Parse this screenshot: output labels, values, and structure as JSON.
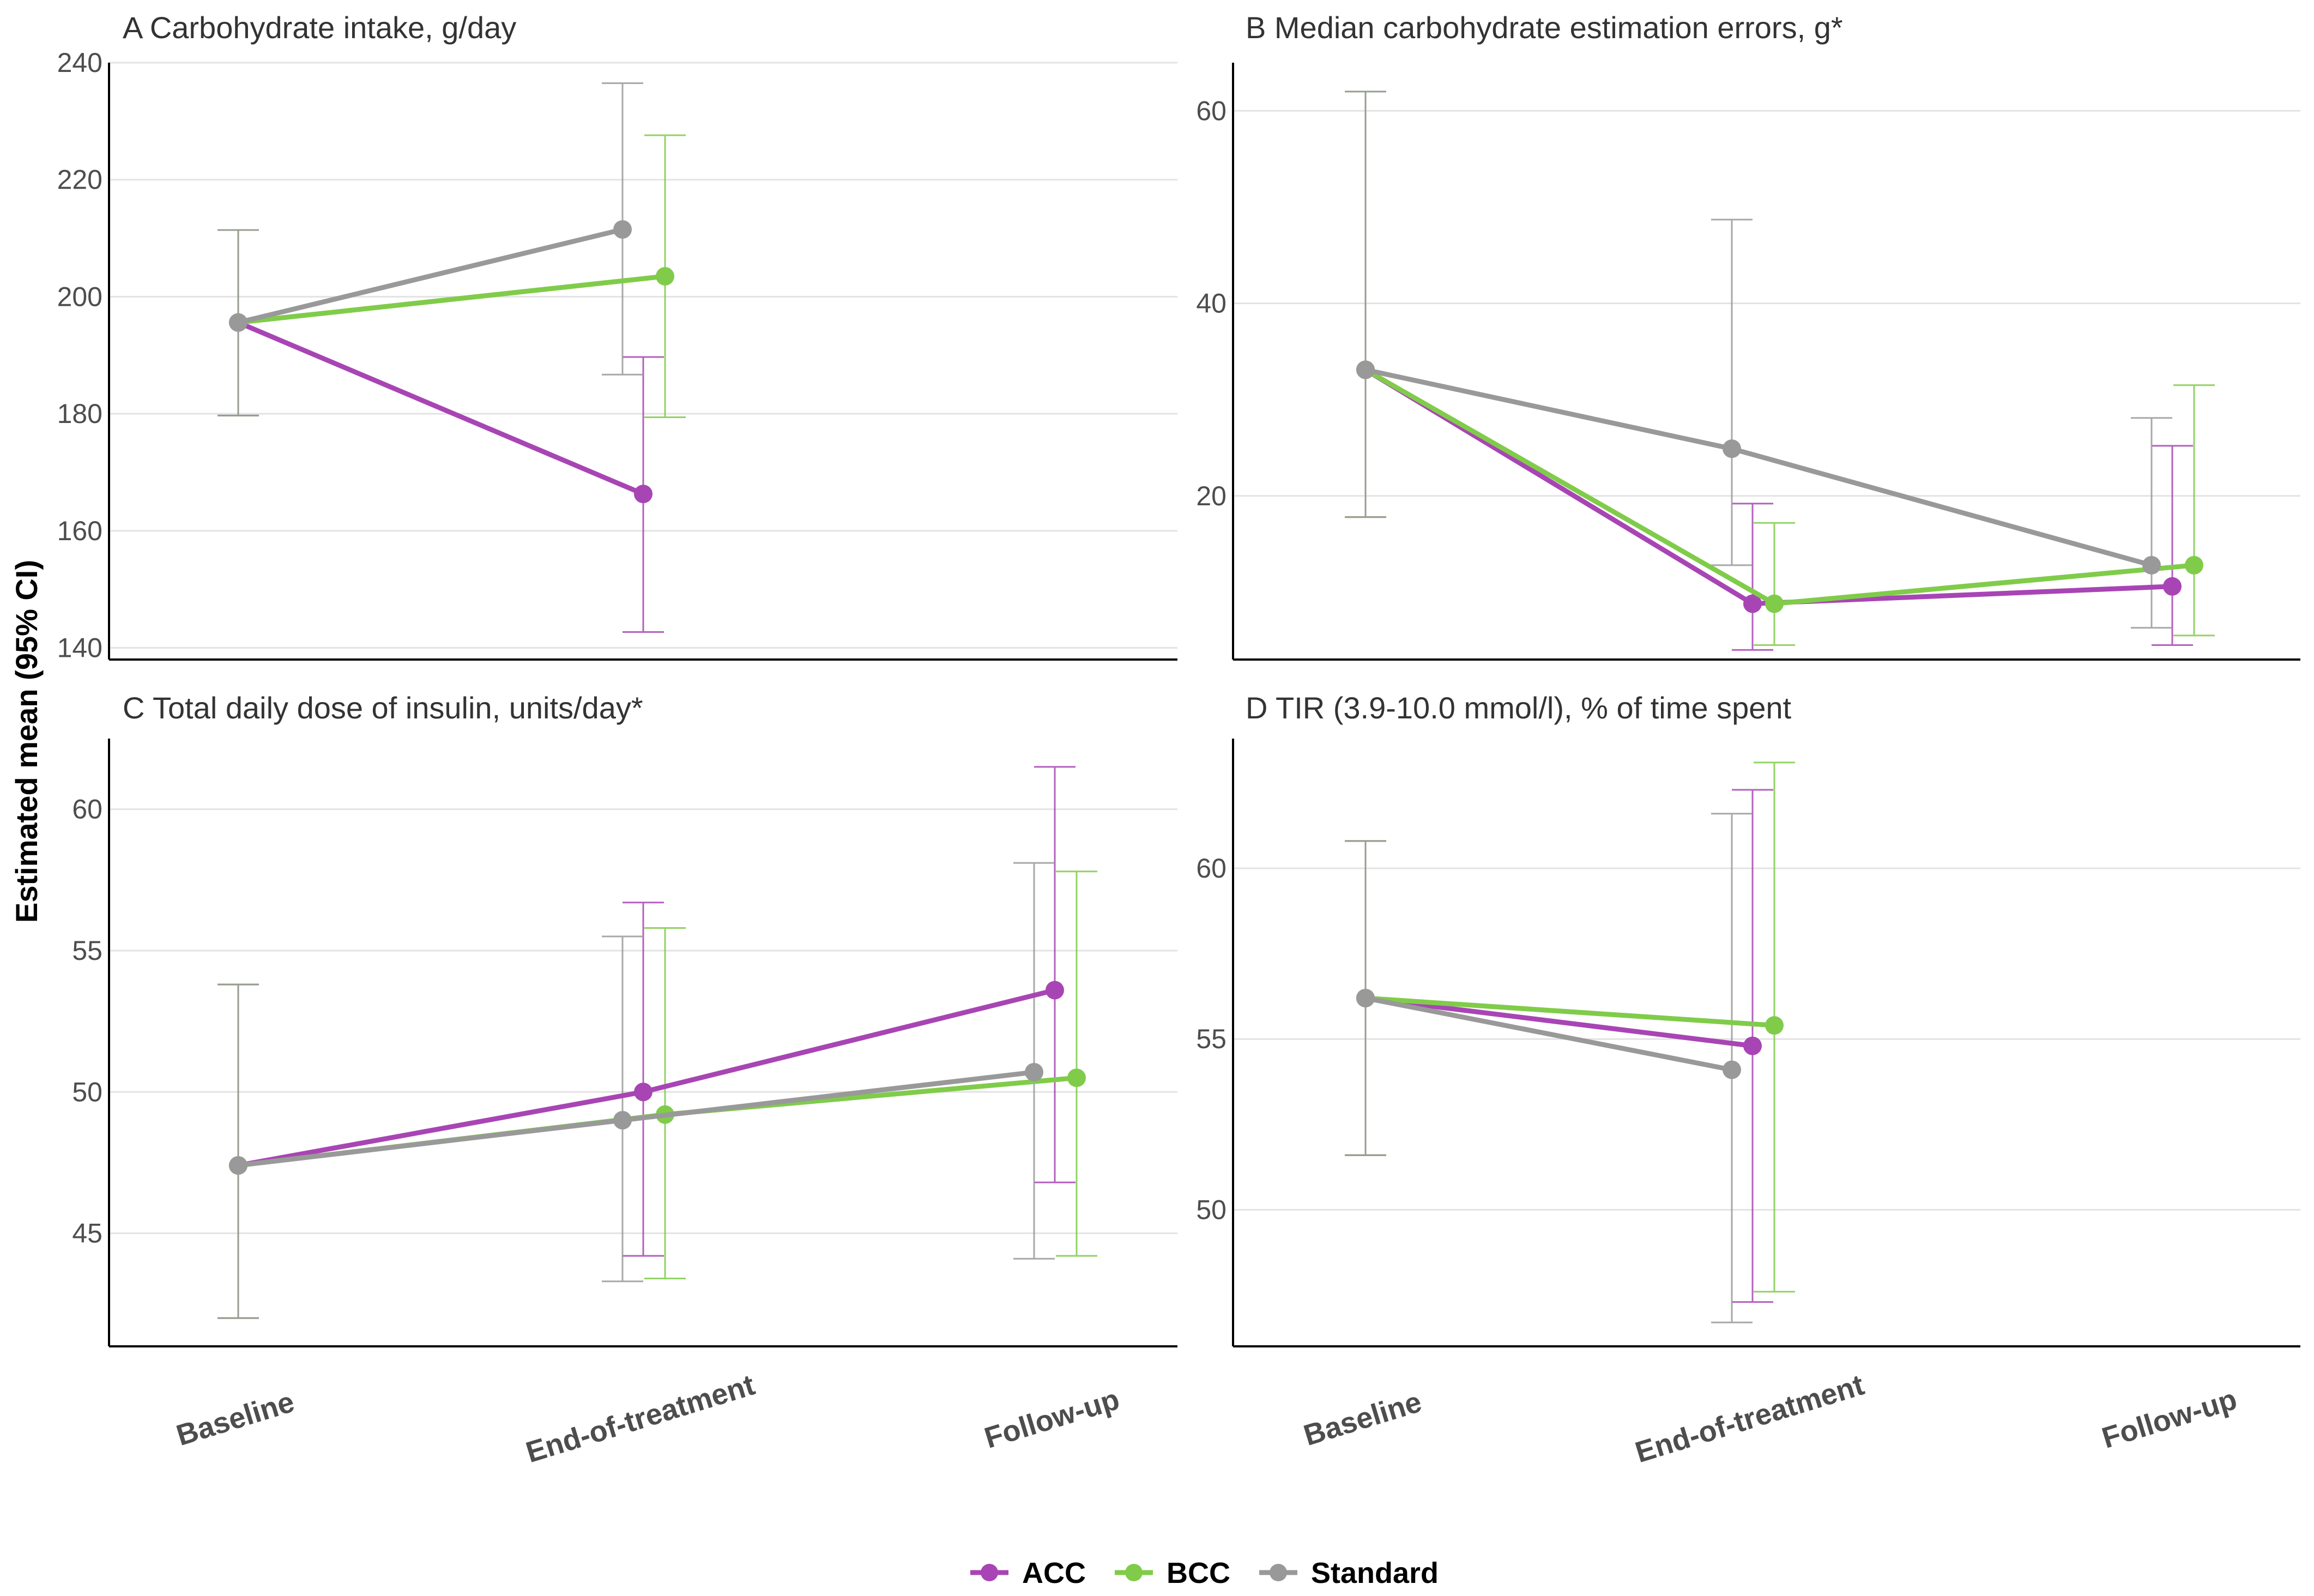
{
  "chart_data": {
    "type": "line",
    "ylabel": "Estimated mean (95% CI)",
    "categories": [
      "Baseline",
      "End-of-treatment",
      "Follow-up"
    ],
    "legend": {
      "placement": "bottom-center",
      "entries": [
        {
          "name": "ACC",
          "color": "#a845b4"
        },
        {
          "name": "BCC",
          "color": "#80cc4a"
        },
        {
          "name": "Standard",
          "color": "#999999"
        }
      ]
    },
    "panels": [
      {
        "title": "A Carbohydrate intake, g/day",
        "ylim": [
          138,
          240
        ],
        "yticks": [
          "140",
          "160",
          "180",
          "200",
          "220",
          "240"
        ],
        "series": [
          {
            "name": "ACC",
            "points": [
              {
                "x": "Baseline",
                "y": 195.6,
                "lo": 179.7,
                "hi": 211.4
              },
              {
                "x": "End-of-treatment",
                "y": 166.3,
                "lo": 142.7,
                "hi": 189.7
              }
            ]
          },
          {
            "name": "BCC",
            "points": [
              {
                "x": "Baseline",
                "y": 195.6,
                "lo": 179.7,
                "hi": 211.4
              },
              {
                "x": "End-of-treatment",
                "y": 203.5,
                "lo": 179.4,
                "hi": 227.6
              }
            ]
          },
          {
            "name": "Standard",
            "points": [
              {
                "x": "Baseline",
                "y": 195.6,
                "lo": 179.7,
                "hi": 211.4
              },
              {
                "x": "End-of-treatment",
                "y": 211.5,
                "lo": 186.7,
                "hi": 236.5
              }
            ]
          }
        ]
      },
      {
        "title": "B Median carbohydrate estimation errors, g*",
        "ylim": [
          3,
          65
        ],
        "yticks": [
          "20",
          "40",
          "60"
        ],
        "series": [
          {
            "name": "ACC",
            "points": [
              {
                "x": "Baseline",
                "y": 33.1,
                "lo": 17.8,
                "hi": 62.0
              },
              {
                "x": "End-of-treatment",
                "y": 8.8,
                "lo": 4.0,
                "hi": 19.2
              },
              {
                "x": "Follow-up",
                "y": 10.6,
                "lo": 4.5,
                "hi": 25.2
              }
            ]
          },
          {
            "name": "BCC",
            "points": [
              {
                "x": "Baseline",
                "y": 33.1,
                "lo": 17.8,
                "hi": 62.0
              },
              {
                "x": "End-of-treatment",
                "y": 8.8,
                "lo": 4.5,
                "hi": 17.2
              },
              {
                "x": "Follow-up",
                "y": 12.8,
                "lo": 5.5,
                "hi": 31.5
              }
            ]
          },
          {
            "name": "Standard",
            "points": [
              {
                "x": "Baseline",
                "y": 33.1,
                "lo": 17.8,
                "hi": 62.0
              },
              {
                "x": "End-of-treatment",
                "y": 24.9,
                "lo": 12.8,
                "hi": 48.7
              },
              {
                "x": "Follow-up",
                "y": 12.8,
                "lo": 6.3,
                "hi": 28.1
              }
            ]
          }
        ]
      },
      {
        "title": "C Total daily dose of insulin, units/day*",
        "ylim": [
          41,
          62.5
        ],
        "yticks": [
          "45",
          "50",
          "55",
          "60"
        ],
        "series": [
          {
            "name": "ACC",
            "points": [
              {
                "x": "Baseline",
                "y": 47.4,
                "lo": 42.0,
                "hi": 53.8
              },
              {
                "x": "End-of-treatment",
                "y": 50.0,
                "lo": 44.2,
                "hi": 56.7
              },
              {
                "x": "Follow-up",
                "y": 53.6,
                "lo": 46.8,
                "hi": 61.5
              }
            ]
          },
          {
            "name": "BCC",
            "points": [
              {
                "x": "Baseline",
                "y": 47.4,
                "lo": 42.0,
                "hi": 53.8
              },
              {
                "x": "End-of-treatment",
                "y": 49.2,
                "lo": 43.4,
                "hi": 55.8
              },
              {
                "x": "Follow-up",
                "y": 50.5,
                "lo": 44.2,
                "hi": 57.8
              }
            ]
          },
          {
            "name": "Standard",
            "points": [
              {
                "x": "Baseline",
                "y": 47.4,
                "lo": 42.0,
                "hi": 53.8
              },
              {
                "x": "End-of-treatment",
                "y": 49.0,
                "lo": 43.3,
                "hi": 55.5
              },
              {
                "x": "Follow-up",
                "y": 50.7,
                "lo": 44.1,
                "hi": 58.1
              }
            ]
          }
        ]
      },
      {
        "title": "D TIR (3.9-10.0 mmol/l), % of time spent",
        "ylim": [
          46,
          63.8
        ],
        "yticks": [
          "50",
          "55",
          "60"
        ],
        "series": [
          {
            "name": "ACC",
            "points": [
              {
                "x": "Baseline",
                "y": 56.2,
                "lo": 51.6,
                "hi": 60.8
              },
              {
                "x": "End-of-treatment",
                "y": 54.8,
                "lo": 47.3,
                "hi": 62.3
              }
            ]
          },
          {
            "name": "BCC",
            "points": [
              {
                "x": "Baseline",
                "y": 56.2,
                "lo": 51.6,
                "hi": 60.8
              },
              {
                "x": "End-of-treatment",
                "y": 55.4,
                "lo": 47.6,
                "hi": 63.1
              }
            ]
          },
          {
            "name": "Standard",
            "points": [
              {
                "x": "Baseline",
                "y": 56.2,
                "lo": 51.6,
                "hi": 60.8
              },
              {
                "x": "End-of-treatment",
                "y": 54.1,
                "lo": 46.7,
                "hi": 61.6
              }
            ]
          }
        ]
      }
    ]
  }
}
